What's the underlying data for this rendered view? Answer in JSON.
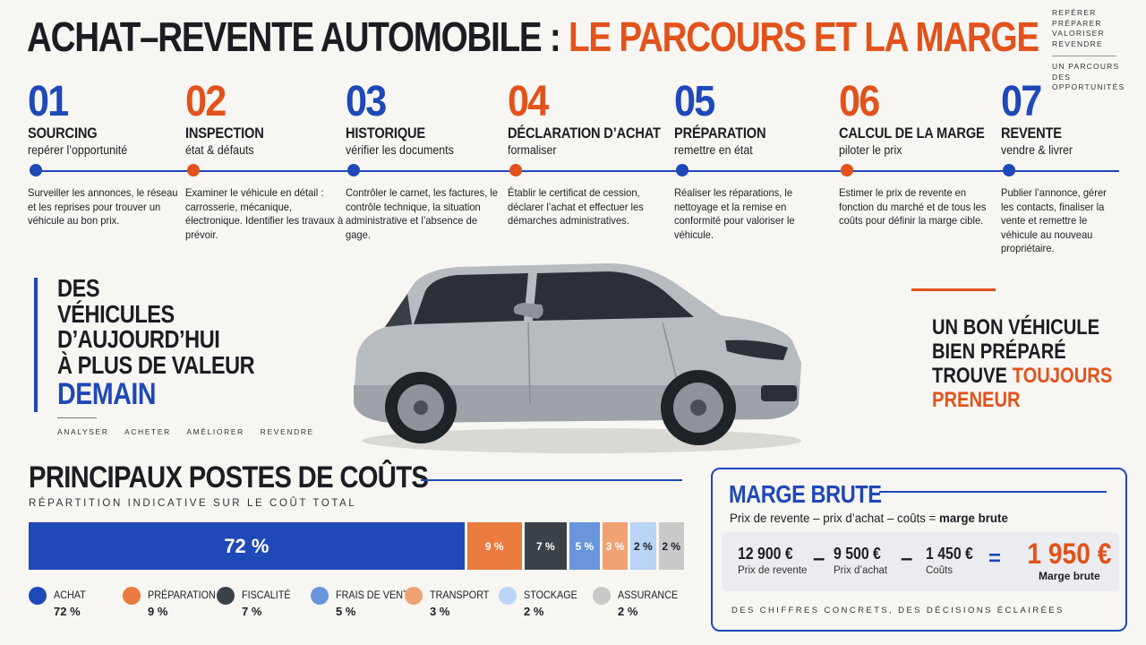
{
  "header": {
    "title_part1": "ACHAT–REVENTE AUTOMOBILE : ",
    "title_part2": "LE PARCOURS ET LA MARGE",
    "tagline": [
      "REPÉRER",
      "PRÉPARER",
      "VALORISER",
      "REVENDRE"
    ],
    "tagline_sub": [
      "UN PARCOURS",
      "DES OPPORTUNITÉS"
    ]
  },
  "steps": [
    {
      "num": "01",
      "title": "SOURCING",
      "subtitle": "repérer l’opportunité",
      "desc": "Surveiller les annonces, le réseau et les reprises pour trouver un véhicule au bon prix.",
      "color": "#1f48b8"
    },
    {
      "num": "02",
      "title": "INSPECTION",
      "subtitle": "état & défauts",
      "desc": "Examiner le véhicule en détail : carrosserie, mécanique, électronique. Identifier les travaux à prévoir.",
      "color": "#e2521b"
    },
    {
      "num": "03",
      "title": "HISTORIQUE",
      "subtitle": "vérifier les documents",
      "desc": "Contrôler le carnet, les factures, le contrôle technique, la situation administrative et l’absence de gage.",
      "color": "#1f48b8"
    },
    {
      "num": "04",
      "title": "DÉCLARATION D’ACHAT",
      "subtitle": "formaliser",
      "desc": "Établir le certificat de cession, déclarer l’achat et effectuer les démarches administratives.",
      "color": "#e2521b"
    },
    {
      "num": "05",
      "title": "PRÉPARATION",
      "subtitle": "remettre en état",
      "desc": "Réaliser les réparations, le nettoyage et la remise en conformité pour valoriser le véhicule.",
      "color": "#1f48b8"
    },
    {
      "num": "06",
      "title": "CALCUL DE LA MARGE",
      "subtitle": "piloter le prix",
      "desc": "Estimer le prix de revente en fonction du marché et de tous les coûts pour définir la marge cible.",
      "color": "#e2521b"
    },
    {
      "num": "07",
      "title": "REVENTE",
      "subtitle": "vendre & livrer",
      "desc": "Publier l’annonce, gérer les contacts, finaliser la vente et remettre le véhicule au nouveau propriétaire.",
      "color": "#1f48b8"
    }
  ],
  "left_slogan": {
    "lines": [
      "DES",
      "VÉHICULES",
      "D’AUJOURD’HUI",
      "À PLUS DE VALEUR"
    ],
    "highlight": "DEMAIN",
    "tags": [
      "ANALYSER",
      "ACHETER",
      "AMÉLIORER",
      "REVENDRE"
    ]
  },
  "right_slogan": {
    "line1": "UN BON VÉHICULE",
    "line2": "BIEN PRÉPARÉ",
    "line3a": "TROUVE ",
    "line3b": "TOUJOURS",
    "line4": "PRENEUR"
  },
  "costs": {
    "title": "PRINCIPAUX POSTES DE COÛTS",
    "subtitle": "RÉPARTITION INDICATIVE SUR LE COÛT TOTAL"
  },
  "chart_data": {
    "type": "bar",
    "stacked": true,
    "categories": [
      "ACHAT",
      "PRÉPARATION",
      "FISCALITÉ",
      "FRAIS DE VENTE",
      "TRANSPORT",
      "STOCKAGE",
      "ASSURANCE"
    ],
    "values": [
      72,
      9,
      7,
      5,
      3,
      2,
      2
    ],
    "labels": [
      "72 %",
      "9 %",
      "7 %",
      "5 %",
      "3 %",
      "2 %",
      "2 %"
    ],
    "colors": [
      "#1f48b8",
      "#ea7a3e",
      "#3b4248",
      "#6895dc",
      "#f0a272",
      "#b9d4f4",
      "#c9c9c9"
    ],
    "title": "PRINCIPAUX POSTES DE COÛTS",
    "subtitle": "RÉPARTITION INDICATIVE SUR LE COÛT TOTAL"
  },
  "margin": {
    "title": "MARGE BRUTE",
    "formula_plain": "Prix de revente – prix d’achat – coûts = ",
    "formula_bold": "marge brute",
    "resale_value": "12 900 €",
    "resale_label": "Prix de revente",
    "purchase_value": "9 500 €",
    "purchase_label": "Prix d’achat",
    "costs_value": "1 450 €",
    "costs_label": "Coûts",
    "result_value": "1 950 €",
    "result_label": "Marge brute",
    "op_minus": "–",
    "op_equals": "=",
    "footer": "DES CHIFFRES CONCRETS, DES DÉCISIONS ÉCLAIRÉES"
  }
}
